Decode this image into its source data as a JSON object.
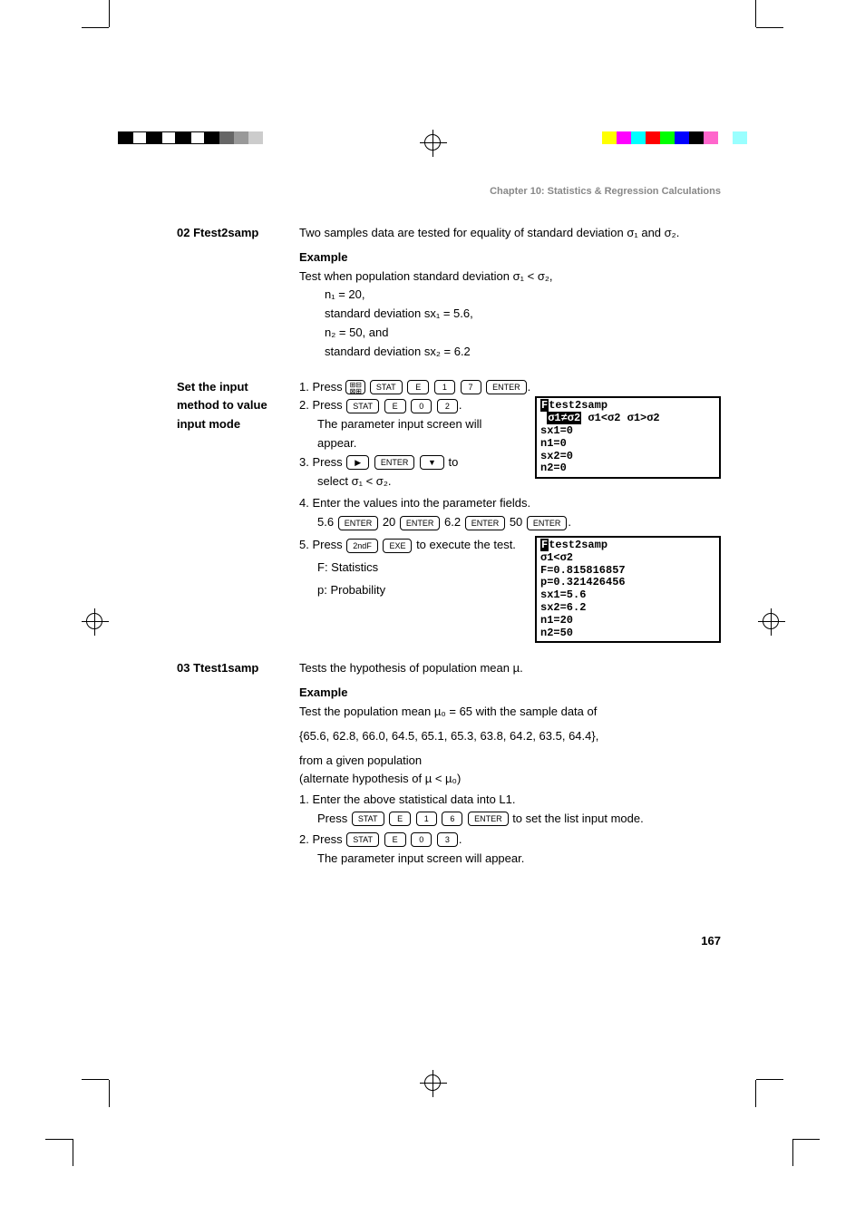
{
  "chapter_header": "Chapter 10: Statistics & Regression Calculations",
  "page_number": "167",
  "sec1": {
    "label": "02 Ftest2samp",
    "intro": "Two samples data are tested for equality of standard deviation σ₁ and σ₂.",
    "example_label": "Example",
    "example_text": "Test when population standard deviation σ₁ < σ₂,",
    "given1": "n₁ = 20,",
    "given2": "standard deviation sx₁ = 5.6,",
    "given3": "n₂ = 50, and",
    "given4": "standard deviation sx₂ = 6.2"
  },
  "sec2": {
    "label": "Set the input method to value input mode",
    "step1_pre": "1.  Press ",
    "step2_pre": "2.  Press ",
    "step2_post": "The parameter input screen will appear.",
    "step3_pre": "3.  Press ",
    "step3_post_a": " to",
    "step3_post_b": "select σ₁ < σ₂.",
    "step4": "4.  Enter the values into the parameter fields.",
    "step4_keys_pre": "5.6 ",
    "step4_keys_mid1": " 20 ",
    "step4_keys_mid2": " 6.2 ",
    "step4_keys_mid3": " 50 ",
    "step5_pre": "5.  Press ",
    "step5_post": " to execute the test.",
    "step5_f": "F: Statistics",
    "step5_p": "p: Probability"
  },
  "keys": {
    "stat": "STAT",
    "e": "E",
    "enter": "ENTER",
    "exe": "EXE",
    "ndf": "2ndF",
    "k1": "1",
    "k7": "7",
    "k0": "0",
    "k2": "2",
    "k3": "3",
    "k6": "6",
    "right": "▶",
    "down": "▼",
    "setup": "⊞⊟\n⊠⊞"
  },
  "screen1": {
    "l1a": "F",
    "l1b": "test2samp",
    "l2a": "σ1≠σ2",
    "l2b": " σ1<σ2 σ1>σ2",
    "l3": "sx1=0",
    "l4": "n1=0",
    "l5": "sx2=0",
    "l6": "n2=0"
  },
  "screen2": {
    "l1a": "F",
    "l1b": "test2samp",
    "l2": "σ1<σ2",
    "l3": "F=0.815816857",
    "l4": "p=0.321426456",
    "l5": "sx1=5.6",
    "l6": "sx2=6.2",
    "l7": "n1=20",
    "l8": "n2=50"
  },
  "sec3": {
    "label": "03 Ttest1samp",
    "intro": "Tests the hypothesis of population mean µ.",
    "example_label": "Example",
    "example_text": "Test the population mean µ₀ = 65 with the sample data of",
    "data": "{65.6, 62.8, 66.0, 64.5, 65.1, 65.3, 63.8, 64.2, 63.5, 64.4},",
    "from": "from a given population",
    "alt": "(alternate hypothesis of µ < µ₀)",
    "step1": "1.  Enter the above statistical data into L1.",
    "step1b_pre": "Press ",
    "step1b_post": " to set the list input mode.",
    "step2_pre": "2.  Press ",
    "step2_post": "The parameter input screen will appear."
  },
  "colors": {
    "left_bars": [
      "#000000",
      "#ffffff",
      "#000000",
      "#ffffff",
      "#000000",
      "#ffffff",
      "#000000",
      "#666666",
      "#999999",
      "#cccccc"
    ],
    "right_bars": [
      "#ffff00",
      "#ff00ff",
      "#00ffff",
      "#ff0000",
      "#00ff00",
      "#0000ff",
      "#000000",
      "#ff66cc",
      "#ffffff",
      "#99ffff"
    ]
  }
}
